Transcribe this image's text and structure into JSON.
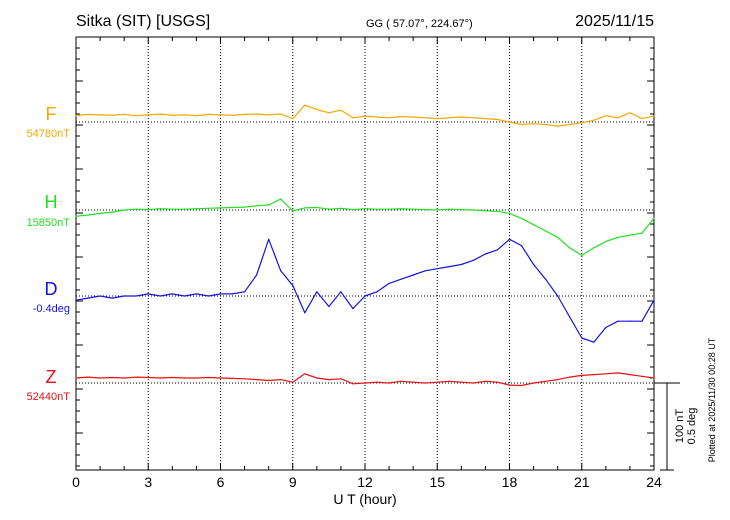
{
  "header": {
    "station": "Sitka (SIT)  [USGS]",
    "coords": "GG ( 57.07°, 224.67°)",
    "date": "2025/11/15"
  },
  "footer": {
    "plotted_at": "Plotted at 2025/11/30 00:28 UT"
  },
  "scale_bar": {
    "label_nt": "100 nT",
    "label_deg": "0.5 deg"
  },
  "chart_data": {
    "type": "line",
    "xlabel": "U T (hour)",
    "xlim": [
      0,
      24
    ],
    "x_ticks": [
      0,
      3,
      6,
      9,
      12,
      15,
      18,
      21,
      24
    ],
    "grid": true,
    "series": [
      {
        "name": "F",
        "baseline_label": "54780nT",
        "color": "#f5a800",
        "x": [
          0,
          0.5,
          1,
          1.5,
          2,
          2.5,
          3,
          3.5,
          4,
          4.5,
          5,
          5.5,
          6,
          6.5,
          7,
          7.5,
          8,
          8.5,
          9,
          9.5,
          10,
          10.5,
          11,
          11.5,
          12,
          12.5,
          13,
          13.5,
          14,
          14.5,
          15,
          15.5,
          16,
          16.5,
          17,
          17.5,
          18,
          18.5,
          19,
          19.5,
          20,
          20.5,
          21,
          21.5,
          22,
          22.5,
          23,
          23.5,
          24
        ],
        "values": [
          15,
          18,
          17,
          16,
          18,
          15,
          17,
          19,
          16,
          17,
          15,
          18,
          17,
          16,
          18,
          19,
          17,
          19,
          8,
          40,
          30,
          22,
          28,
          10,
          14,
          12,
          10,
          13,
          12,
          10,
          8,
          10,
          12,
          10,
          8,
          6,
          0,
          -6,
          -4,
          -6,
          -10,
          -6,
          -2,
          4,
          15,
          10,
          22,
          8,
          14
        ]
      },
      {
        "name": "H",
        "baseline_label": "15850nT",
        "color": "#22e022",
        "x": [
          0,
          0.5,
          1,
          1.5,
          2,
          2.5,
          3,
          3.5,
          4,
          4.5,
          5,
          5.5,
          6,
          6.5,
          7,
          7.5,
          8,
          8.5,
          9,
          9.5,
          10,
          10.5,
          11,
          11.5,
          12,
          12.5,
          13,
          13.5,
          14,
          14.5,
          15,
          15.5,
          16,
          16.5,
          17,
          17.5,
          18,
          18.5,
          19,
          19.5,
          20,
          20.5,
          21,
          21.5,
          22,
          22.5,
          23,
          23.5,
          24
        ],
        "values": [
          -15,
          -12,
          -8,
          -5,
          0,
          2,
          1,
          3,
          2,
          2,
          3,
          4,
          5,
          6,
          7,
          10,
          12,
          26,
          -2,
          5,
          6,
          2,
          4,
          1,
          3,
          2,
          2,
          3,
          2,
          1,
          0,
          2,
          1,
          0,
          -2,
          -3,
          -8,
          -20,
          -35,
          -50,
          -65,
          -90,
          -108,
          -90,
          -75,
          -65,
          -60,
          -55,
          -20
        ]
      },
      {
        "name": "D",
        "baseline_label": "-0.4deg",
        "color": "#1414e0",
        "x": [
          0,
          0.5,
          1,
          1.5,
          2,
          2.5,
          3,
          3.5,
          4,
          4.5,
          5,
          5.5,
          6,
          6.5,
          7,
          7.5,
          8,
          8.5,
          9,
          9.5,
          10,
          10.5,
          11,
          11.5,
          12,
          12.5,
          13,
          13.5,
          14,
          14.5,
          15,
          15.5,
          16,
          16.5,
          17,
          17.5,
          18,
          18.5,
          19,
          19.5,
          20,
          20.5,
          21,
          21.5,
          22,
          22.5,
          23,
          23.5,
          24
        ],
        "values": [
          -0.02,
          -0.01,
          0.0,
          -0.01,
          0.0,
          0.0,
          0.01,
          0.0,
          0.01,
          0.0,
          0.01,
          0.0,
          0.01,
          0.01,
          0.02,
          0.1,
          0.27,
          0.12,
          0.05,
          -0.08,
          0.02,
          -0.05,
          0.02,
          -0.06,
          0.0,
          0.02,
          0.06,
          0.08,
          0.1,
          0.12,
          0.13,
          0.14,
          0.15,
          0.17,
          0.2,
          0.22,
          0.27,
          0.24,
          0.15,
          0.08,
          0.0,
          -0.1,
          -0.2,
          -0.22,
          -0.15,
          -0.12,
          -0.12,
          -0.12,
          -0.02
        ]
      },
      {
        "name": "Z",
        "baseline_label": "52440nT",
        "color": "#e81010",
        "x": [
          0,
          0.5,
          1,
          1.5,
          2,
          2.5,
          3,
          3.5,
          4,
          4.5,
          5,
          5.5,
          6,
          6.5,
          7,
          7.5,
          8,
          8.5,
          9,
          9.5,
          10,
          10.5,
          11,
          11.5,
          12,
          12.5,
          13,
          13.5,
          14,
          14.5,
          15,
          15.5,
          16,
          16.5,
          17,
          17.5,
          18,
          18.5,
          19,
          19.5,
          20,
          20.5,
          21,
          21.5,
          22,
          22.5,
          23,
          23.5,
          24
        ],
        "values": [
          12,
          14,
          12,
          13,
          12,
          14,
          13,
          12,
          13,
          12,
          12,
          13,
          12,
          11,
          10,
          8,
          6,
          8,
          2,
          22,
          12,
          8,
          10,
          -2,
          0,
          2,
          0,
          4,
          2,
          0,
          2,
          4,
          2,
          0,
          4,
          2,
          -5,
          -6,
          0,
          4,
          8,
          14,
          18,
          20,
          22,
          24,
          20,
          16,
          12
        ]
      }
    ]
  }
}
